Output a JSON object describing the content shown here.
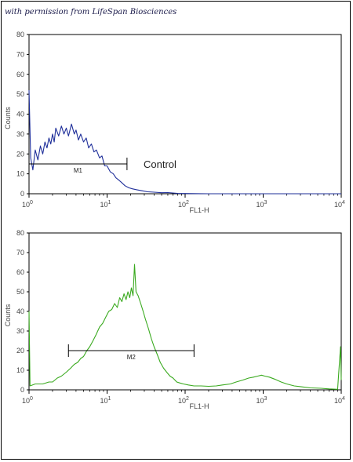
{
  "permission_note": "with permission from LifeSpan Biosciences",
  "chart_data": [
    {
      "type": "line",
      "xlabel": "FL1-H",
      "ylabel": "Counts",
      "xscale": "log",
      "xlim": [
        1,
        10000
      ],
      "ylim": [
        0,
        80
      ],
      "xticks": [
        {
          "value": 1,
          "base": "10",
          "exp": "0"
        },
        {
          "value": 10,
          "base": "10",
          "exp": "1"
        },
        {
          "value": 100,
          "base": "10",
          "exp": "2"
        },
        {
          "value": 1000,
          "base": "10",
          "exp": "3"
        },
        {
          "value": 10000,
          "base": "10",
          "exp": "4"
        }
      ],
      "yticks": [
        "0",
        "10",
        "20",
        "30",
        "40",
        "50",
        "60",
        "70",
        "80"
      ],
      "grid": false,
      "series": [
        {
          "color": "#1f2f9a",
          "points": [
            [
              1.0,
              52
            ],
            [
              1.05,
              18
            ],
            [
              1.12,
              12
            ],
            [
              1.2,
              22
            ],
            [
              1.3,
              17
            ],
            [
              1.4,
              24
            ],
            [
              1.5,
              20
            ],
            [
              1.6,
              26
            ],
            [
              1.7,
              23
            ],
            [
              1.8,
              28
            ],
            [
              1.9,
              25
            ],
            [
              2.0,
              30
            ],
            [
              2.1,
              26
            ],
            [
              2.2,
              33
            ],
            [
              2.4,
              29
            ],
            [
              2.6,
              34
            ],
            [
              2.8,
              30
            ],
            [
              3.0,
              33
            ],
            [
              3.2,
              29
            ],
            [
              3.5,
              35
            ],
            [
              3.8,
              30
            ],
            [
              4.0,
              32
            ],
            [
              4.3,
              27
            ],
            [
              4.6,
              30
            ],
            [
              5.0,
              26
            ],
            [
              5.4,
              28
            ],
            [
              5.8,
              23
            ],
            [
              6.3,
              25
            ],
            [
              6.8,
              21
            ],
            [
              7.3,
              22
            ],
            [
              8.0,
              18
            ],
            [
              8.6,
              19
            ],
            [
              9.3,
              14
            ],
            [
              10.0,
              14
            ],
            [
              11,
              11
            ],
            [
              12,
              10
            ],
            [
              13,
              8
            ],
            [
              14,
              7
            ],
            [
              15,
              6
            ],
            [
              17,
              4
            ],
            [
              19,
              3
            ],
            [
              21,
              2.5
            ],
            [
              24,
              2
            ],
            [
              28,
              1.5
            ],
            [
              33,
              1
            ],
            [
              40,
              0.8
            ],
            [
              50,
              0.5
            ],
            [
              60,
              0.6
            ],
            [
              80,
              0.2
            ],
            [
              100,
              0.1
            ],
            [
              200,
              0
            ],
            [
              1000,
              0
            ],
            [
              10000,
              0
            ]
          ]
        }
      ],
      "markers": [
        {
          "label": "M1",
          "from": 1,
          "to": 18,
          "y": 15
        }
      ],
      "annotations": [
        "Control"
      ]
    },
    {
      "type": "line",
      "xlabel": "FL1-H",
      "ylabel": "Counts",
      "xscale": "log",
      "xlim": [
        1,
        10000
      ],
      "ylim": [
        0,
        80
      ],
      "xticks": [
        {
          "value": 1,
          "base": "10",
          "exp": "0"
        },
        {
          "value": 10,
          "base": "10",
          "exp": "1"
        },
        {
          "value": 100,
          "base": "10",
          "exp": "2"
        },
        {
          "value": 1000,
          "base": "10",
          "exp": "3"
        },
        {
          "value": 10000,
          "base": "10",
          "exp": "4"
        }
      ],
      "yticks": [
        "0",
        "10",
        "20",
        "30",
        "40",
        "50",
        "60",
        "70",
        "80"
      ],
      "grid": false,
      "series": [
        {
          "color": "#3aaa1f",
          "points": [
            [
              1.0,
              40
            ],
            [
              1.03,
              2
            ],
            [
              1.2,
              3
            ],
            [
              1.5,
              3
            ],
            [
              1.8,
              4
            ],
            [
              2.0,
              4
            ],
            [
              2.3,
              6
            ],
            [
              2.6,
              7
            ],
            [
              3.0,
              9
            ],
            [
              3.4,
              11
            ],
            [
              3.8,
              13
            ],
            [
              4.2,
              14
            ],
            [
              4.6,
              16
            ],
            [
              5.0,
              17
            ],
            [
              5.5,
              20
            ],
            [
              6.0,
              22
            ],
            [
              6.6,
              25
            ],
            [
              7.2,
              28
            ],
            [
              8.0,
              32
            ],
            [
              8.8,
              34
            ],
            [
              9.6,
              37
            ],
            [
              10.5,
              40
            ],
            [
              11.5,
              41
            ],
            [
              12.5,
              44
            ],
            [
              13.5,
              42
            ],
            [
              14.5,
              47
            ],
            [
              15.5,
              45
            ],
            [
              16.5,
              49
            ],
            [
              17.5,
              46
            ],
            [
              18.5,
              50
            ],
            [
              19.5,
              47
            ],
            [
              20.5,
              52
            ],
            [
              21.5,
              48
            ],
            [
              22.5,
              64
            ],
            [
              23.5,
              50
            ],
            [
              25,
              48
            ],
            [
              27,
              44
            ],
            [
              29,
              40
            ],
            [
              31,
              36
            ],
            [
              34,
              31
            ],
            [
              37,
              26
            ],
            [
              40,
              22
            ],
            [
              44,
              18
            ],
            [
              48,
              14
            ],
            [
              53,
              11
            ],
            [
              58,
              9
            ],
            [
              64,
              7
            ],
            [
              70,
              6
            ],
            [
              78,
              4
            ],
            [
              86,
              3.5
            ],
            [
              95,
              3
            ],
            [
              110,
              2.5
            ],
            [
              130,
              2
            ],
            [
              160,
              2
            ],
            [
              200,
              1.8
            ],
            [
              250,
              2
            ],
            [
              300,
              2.5
            ],
            [
              380,
              3
            ],
            [
              450,
              4
            ],
            [
              550,
              5
            ],
            [
              650,
              6
            ],
            [
              750,
              6.5
            ],
            [
              850,
              7
            ],
            [
              950,
              7.5
            ],
            [
              1050,
              7
            ],
            [
              1200,
              6.5
            ],
            [
              1400,
              5.5
            ],
            [
              1700,
              4
            ],
            [
              2000,
              3
            ],
            [
              2500,
              2
            ],
            [
              3200,
              1.5
            ],
            [
              4000,
              1
            ],
            [
              5500,
              0.8
            ],
            [
              7000,
              0.5
            ],
            [
              9000,
              0.3
            ],
            [
              9800,
              22
            ],
            [
              10000,
              5
            ]
          ]
        }
      ],
      "markers": [
        {
          "label": "M2",
          "from": 3.2,
          "to": 130,
          "y": 20
        }
      ]
    }
  ]
}
